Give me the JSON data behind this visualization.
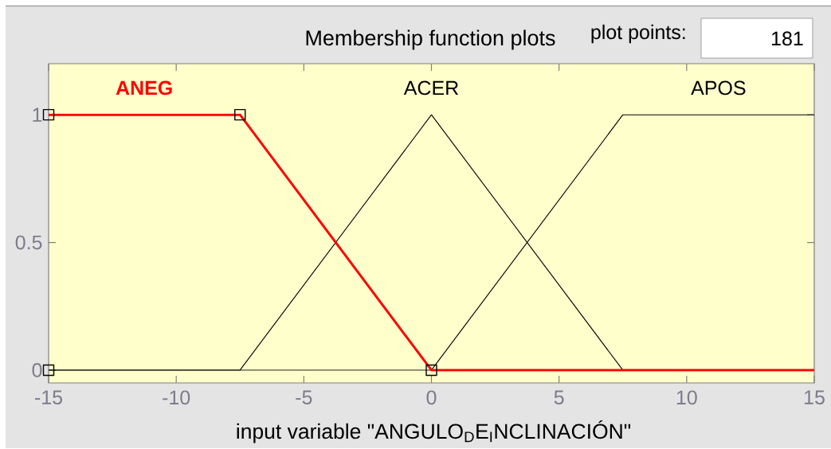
{
  "chart_data": {
    "type": "line",
    "title": "Membership function plots",
    "xlabel": "input variable \"ANGULO$_{D}$E$_{I}$NCLINACIÓN\"",
    "annotations": [
      "plot points:",
      "181"
    ],
    "xlim": [
      -15,
      15
    ],
    "ylim": [
      -0.05,
      1.2
    ],
    "xticks": [
      -15,
      -10,
      -5,
      0,
      5,
      10,
      15
    ],
    "yticks": [
      0,
      0.5,
      1
    ],
    "series": [
      {
        "name": "ACER",
        "color": "#000000",
        "x": [
          -15,
          -7.5,
          0,
          7.5,
          15
        ],
        "values": [
          0,
          0,
          1,
          0,
          0
        ]
      },
      {
        "name": "APOS",
        "color": "#000000",
        "x": [
          -15,
          0,
          7.5,
          15
        ],
        "values": [
          0,
          0,
          1,
          1
        ]
      },
      {
        "name": "ANEG",
        "color": "#ff0000",
        "x": [
          -15,
          -7.5,
          0,
          15
        ],
        "values": [
          1,
          1,
          0,
          0
        ]
      },
      {
        "type": "scatter",
        "color": "#000000",
        "marker": "square",
        "x": [
          -15,
          -15,
          -7.5,
          0
        ],
        "values": [
          0,
          1,
          1,
          0
        ]
      }
    ]
  }
}
